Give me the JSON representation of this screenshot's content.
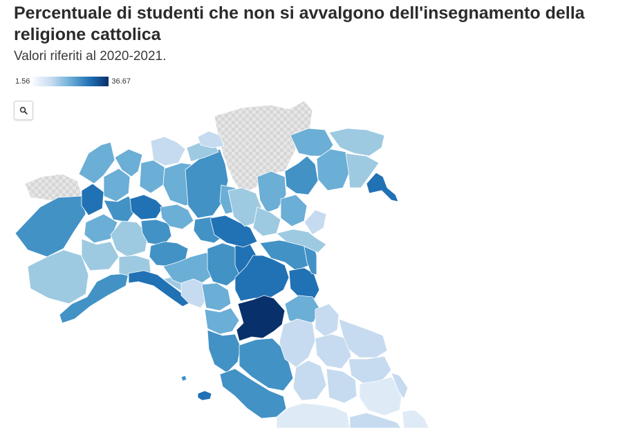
{
  "title": "Percentuale di studenti che non si avvalgono dell'insegnamento della religione cattolica",
  "subtitle": "Valori riferiti al 2020-2021.",
  "legend": {
    "min": "1.56",
    "max": "36.67"
  },
  "colors": {
    "no_data_pattern": "#d9d9d9",
    "scale": [
      "#f7fbff",
      "#c6dbef",
      "#6baed6",
      "#2171b5",
      "#08306b"
    ]
  },
  "zoom_control": {
    "icon": "search-icon"
  }
}
